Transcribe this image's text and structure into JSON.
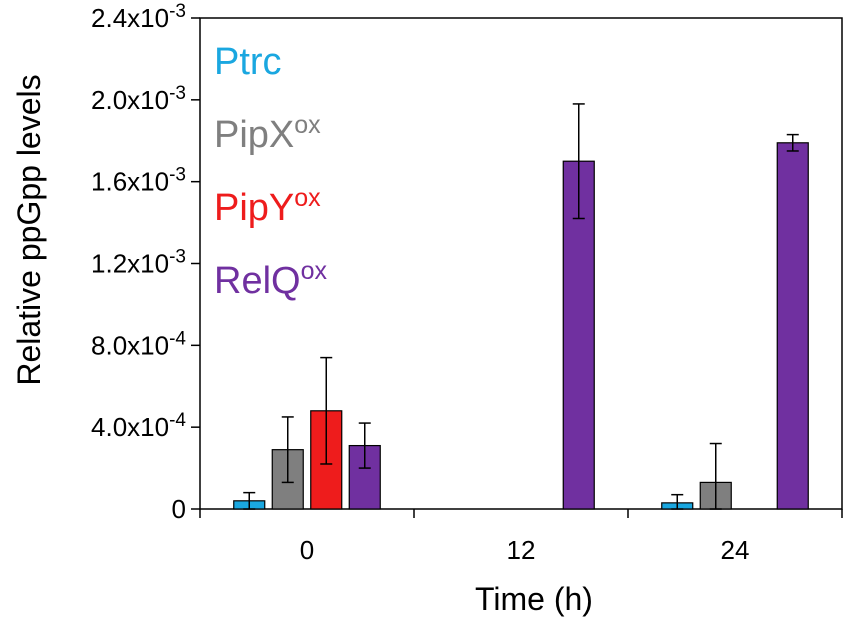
{
  "chart_data": {
    "type": "bar",
    "title": "",
    "xlabel": "Time (h)",
    "ylabel": "Relative ppGpp levels",
    "ylim": [
      0,
      0.0024
    ],
    "y_ticks": [
      {
        "value": 0,
        "mantissa": "0",
        "exponent": ""
      },
      {
        "value": 0.0004,
        "mantissa": "4.0x10",
        "exponent": "-4"
      },
      {
        "value": 0.0008,
        "mantissa": "8.0x10",
        "exponent": "-4"
      },
      {
        "value": 0.0012,
        "mantissa": "1.2x10",
        "exponent": "-3"
      },
      {
        "value": 0.0016,
        "mantissa": "1.6x10",
        "exponent": "-3"
      },
      {
        "value": 0.002,
        "mantissa": "2.0x10",
        "exponent": "-3"
      },
      {
        "value": 0.0024,
        "mantissa": "2.4x10",
        "exponent": "-3"
      }
    ],
    "categories": [
      "0",
      "12",
      "24"
    ],
    "legend_position": "top-left",
    "series": [
      {
        "name": "Ptrc",
        "base": "Ptrc",
        "sup": "",
        "color": "#1aa7e0",
        "values": [
          4e-05,
          null,
          3e-05
        ],
        "errors": [
          4e-05,
          null,
          4e-05
        ]
      },
      {
        "name": "PipXox",
        "base": "PipX",
        "sup": "ox",
        "color": "#7f7f7f",
        "values": [
          0.00029,
          null,
          0.00013
        ],
        "errors": [
          0.00016,
          null,
          0.00019
        ]
      },
      {
        "name": "PipYox",
        "base": "PipY",
        "sup": "ox",
        "color": "#ee1c1c",
        "values": [
          0.00048,
          null,
          null
        ],
        "errors": [
          0.00026,
          null,
          null
        ]
      },
      {
        "name": "RelQox",
        "base": "RelQ",
        "sup": "ox",
        "color": "#7030a0",
        "values": [
          0.00031,
          0.0017,
          0.00179
        ],
        "errors": [
          0.00011,
          0.00028,
          4e-05
        ]
      }
    ]
  }
}
